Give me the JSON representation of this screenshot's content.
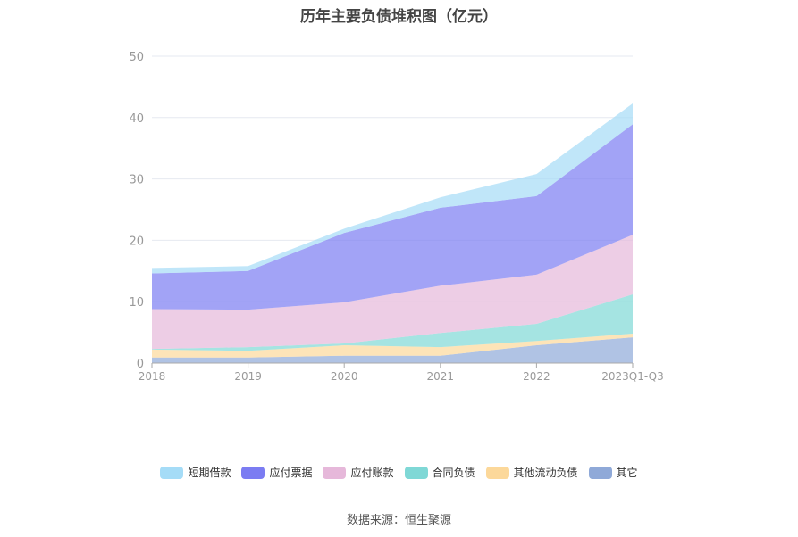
{
  "chart_data": {
    "type": "area",
    "stacked": true,
    "title": "历年主要负债堆积图（亿元）",
    "categories": [
      "2018",
      "2019",
      "2020",
      "2021",
      "2022",
      "2023Q1-Q3"
    ],
    "ylim": [
      0,
      50
    ],
    "yticks": [
      0,
      10,
      20,
      30,
      40,
      50
    ],
    "grid": true,
    "legend_position": "bottom",
    "series": [
      {
        "name": "其它",
        "color": "#8fa9d8",
        "values": [
          0.9,
          0.9,
          1.2,
          1.2,
          2.9,
          4.2
        ]
      },
      {
        "name": "其他流动负债",
        "color": "#fcd89a",
        "values": [
          1.3,
          1.1,
          1.7,
          1.4,
          0.7,
          0.6
        ]
      },
      {
        "name": "合同负债",
        "color": "#7fd8d6",
        "values": [
          0.1,
          0.6,
          0.3,
          2.3,
          2.8,
          6.4
        ]
      },
      {
        "name": "应付账款",
        "color": "#e6b8da",
        "values": [
          6.5,
          6.1,
          6.7,
          7.7,
          8.0,
          9.7
        ]
      },
      {
        "name": "应付票据",
        "color": "#7b7cf2",
        "values": [
          5.8,
          6.3,
          11.3,
          12.7,
          12.8,
          18.0
        ]
      },
      {
        "name": "短期借款",
        "color": "#a5dcf7",
        "values": [
          0.9,
          0.8,
          0.7,
          1.7,
          3.6,
          3.4
        ]
      }
    ]
  },
  "source": "数据来源：恒生聚源"
}
